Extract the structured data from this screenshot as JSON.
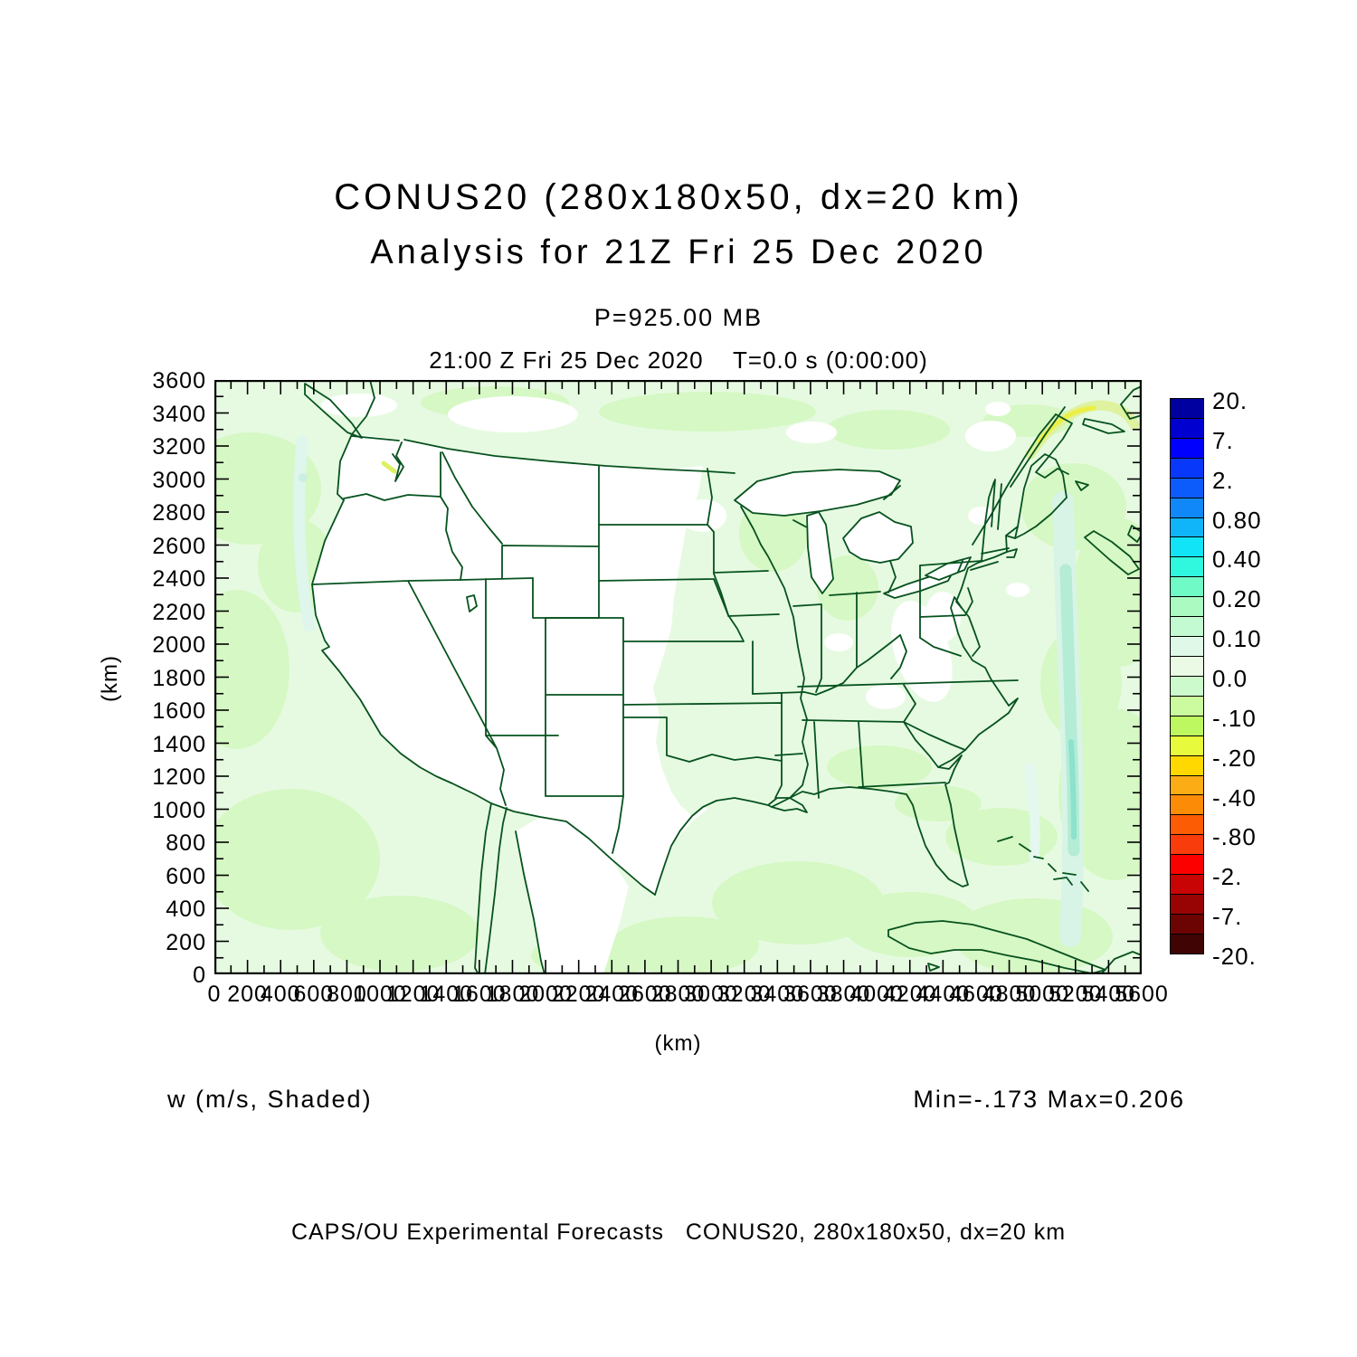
{
  "titles": {
    "line1": "CONUS20 (280x180x50, dx=20 km)",
    "line2": "Analysis for 21Z Fri 25 Dec 2020",
    "pressure": "P=925.00 MB",
    "time_line": "21:00 Z Fri 25 Dec 2020    T=0.0 s (0:00:00)"
  },
  "axes": {
    "x": {
      "label": "(km)",
      "min": 0,
      "max": 5600,
      "tick_step": 200,
      "minor_step": 100
    },
    "y": {
      "label": "(km)",
      "min": 0,
      "max": 3600,
      "tick_step": 200,
      "minor_step": 100
    }
  },
  "colorbar": {
    "labels": [
      "20.",
      "7.",
      "2.",
      "0.80",
      "0.40",
      "0.20",
      "0.10",
      "0.0",
      "-.10",
      "-.20",
      "-.40",
      "-.80",
      "-2.",
      "-7.",
      "-20."
    ],
    "cell_colors": [
      "#0000a0",
      "#0000d0",
      "#0000ff",
      "#0838fa",
      "#0c5cfc",
      "#1088fa",
      "#10b4f8",
      "#10e4f6",
      "#30f8de",
      "#70fac6",
      "#aafac2",
      "#c4fad2",
      "#e0f8e8",
      "#eafae4",
      "#ccfacc",
      "#ccfa9e",
      "#bef860",
      "#e8fa3c",
      "#ffd800",
      "#fcac14",
      "#fc8c08",
      "#fc5c04",
      "#f83c0c",
      "#fc0000",
      "#c80404",
      "#980404",
      "#6c0404",
      "#400404"
    ]
  },
  "annotations": {
    "field": "w (m/s, Shaded)",
    "minmax": "Min=-.173 Max=0.206"
  },
  "footer": "CAPS/OU Experimental Forecasts   CONUS20, 280x180x50, dx=20 km",
  "colors": {
    "text": "#000000",
    "plot_border": "#000000",
    "map_line": "#06521e",
    "shade_light": "#e6fae1",
    "shade_green": "#d6f8c4",
    "shade_white": "#ffffff",
    "cyan_outer": "#d8f4e6",
    "cyan_mid": "#b4ecd6",
    "cyan_core": "#8ce2cc",
    "pacific_cyan": "#dff6ec",
    "yellow_outer": "#def2a0",
    "yellow_core": "#ecef45",
    "seattle_yellow": "#dcf161"
  },
  "chart_data": {
    "type": "heatmap",
    "title": "CONUS20 (280x180x50, dx=20 km)",
    "subtitle": "Analysis for 21Z Fri 25 Dec 2020",
    "pressure_level_mb": 925.0,
    "valid_time": "21:00 Z Fri 25 Dec 2020",
    "forecast_offset": "T=0.0 s (0:00:00)",
    "variable": "w (m/s, Shaded)",
    "min": -0.173,
    "max": 0.206,
    "xlabel": "(km)",
    "ylabel": "(km)",
    "xlim": [
      0,
      5600
    ],
    "ylim": [
      0,
      3600
    ],
    "x_tick_step": 200,
    "y_tick_step": 200,
    "grid": false,
    "legend_position": "right-colorbar",
    "colorbar_tick_labels": [
      "20.",
      "7.",
      "2.",
      "0.80",
      "0.40",
      "0.20",
      "0.10",
      "0.0",
      "-.10",
      "-.20",
      "-.40",
      "-.80",
      "-2.",
      "-7.",
      "-20."
    ],
    "colorbar_colors": [
      "#0000a0",
      "#0000d0",
      "#0000ff",
      "#0838fa",
      "#0c5cfc",
      "#1088fa",
      "#10b4f8",
      "#10e4f6",
      "#30f8de",
      "#70fac6",
      "#aafac2",
      "#c4fad2",
      "#e0f8e8",
      "#eafae4",
      "#ccfacc",
      "#ccfa9e",
      "#bef860",
      "#e8fa3c",
      "#ffd800",
      "#fcac14",
      "#fc8c08",
      "#fc5c04",
      "#f83c0c",
      "#fc0000",
      "#c80404",
      "#980404",
      "#6c0404",
      "#400404"
    ],
    "field_summary": "Vertical velocity w shaded over CONUS map with state borders; values mostly between -0.10 and 0.10 m/s: weak negative (pale green) over oceans, Canada, Mexico and the eastern US; near zero (white) over the interior West, Plains and Appalachians; weak positive (cyan streak) offshore the Atlantic coast and the Pacific Northwest coast; negative (yellow-green streak) along the St. Lawrence valley and near Puget Sound"
  }
}
